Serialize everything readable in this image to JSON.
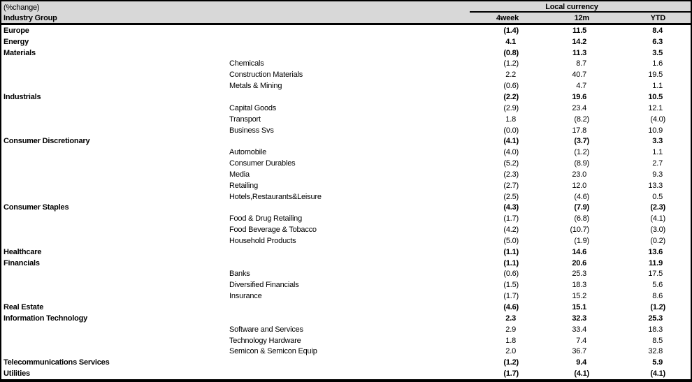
{
  "colors": {
    "header_bg": "#d8d8d8",
    "border": "#000000",
    "text": "#000000"
  },
  "table": {
    "corner_label": "(%change)",
    "row_header_label": "Industry Group",
    "group_header": "Local currency",
    "columns": [
      "4week",
      "12m",
      "YTD"
    ],
    "rows": [
      {
        "label": "Europe",
        "level": "group",
        "bold": true,
        "values": [
          "(1.4)",
          "11.5",
          "8.4"
        ]
      },
      {
        "label": "Energy",
        "level": "group",
        "bold": true,
        "values": [
          "4.1",
          "14.2",
          "6.3"
        ]
      },
      {
        "label": "Materials",
        "level": "group",
        "bold": true,
        "values": [
          "(0.8)",
          "11.3",
          "3.5"
        ]
      },
      {
        "label": "Chemicals",
        "level": "sub",
        "bold": false,
        "values": [
          "(1.2)",
          "8.7",
          "1.6"
        ]
      },
      {
        "label": "Construction Materials",
        "level": "sub",
        "bold": false,
        "values": [
          "2.2",
          "40.7",
          "19.5"
        ]
      },
      {
        "label": "Metals & Mining",
        "level": "sub",
        "bold": false,
        "values": [
          "(0.6)",
          "4.7",
          "1.1"
        ]
      },
      {
        "label": "Industrials",
        "level": "group",
        "bold": true,
        "values": [
          "(2.2)",
          "19.6",
          "10.5"
        ]
      },
      {
        "label": "Capital Goods",
        "level": "sub",
        "bold": false,
        "values": [
          "(2.9)",
          "23.4",
          "12.1"
        ]
      },
      {
        "label": "Transport",
        "level": "sub",
        "bold": false,
        "values": [
          "1.8",
          "(8.2)",
          "(4.0)"
        ]
      },
      {
        "label": "Business Svs",
        "level": "sub",
        "bold": false,
        "values": [
          "(0.0)",
          "17.8",
          "10.9"
        ]
      },
      {
        "label": "Consumer Discretionary",
        "level": "group",
        "bold": true,
        "values": [
          "(4.1)",
          "(3.7)",
          "3.3"
        ]
      },
      {
        "label": "Automobile",
        "level": "sub",
        "bold": false,
        "values": [
          "(4.0)",
          "(1.2)",
          "1.1"
        ]
      },
      {
        "label": "Consumer Durables",
        "level": "sub",
        "bold": false,
        "values": [
          "(5.2)",
          "(8.9)",
          "2.7"
        ]
      },
      {
        "label": "Media",
        "level": "sub",
        "bold": false,
        "values": [
          "(2.3)",
          "23.0",
          "9.3"
        ]
      },
      {
        "label": "Retailing",
        "level": "sub",
        "bold": false,
        "values": [
          "(2.7)",
          "12.0",
          "13.3"
        ]
      },
      {
        "label": "Hotels,Restaurants&Leisure",
        "level": "sub",
        "bold": false,
        "values": [
          "(2.5)",
          "(4.6)",
          "0.5"
        ]
      },
      {
        "label": "Consumer Staples",
        "level": "group",
        "bold": true,
        "values": [
          "(4.3)",
          "(7.9)",
          "(2.3)"
        ]
      },
      {
        "label": "Food & Drug Retailing",
        "level": "sub",
        "bold": false,
        "values": [
          "(1.7)",
          "(6.8)",
          "(4.1)"
        ]
      },
      {
        "label": "Food Beverage & Tobacco",
        "level": "sub",
        "bold": false,
        "values": [
          "(4.2)",
          "(10.7)",
          "(3.0)"
        ]
      },
      {
        "label": "Household Products",
        "level": "sub",
        "bold": false,
        "values": [
          "(5.0)",
          "(1.9)",
          "(0.2)"
        ]
      },
      {
        "label": "Healthcare",
        "level": "group",
        "bold": true,
        "values": [
          "(1.1)",
          "14.6",
          "13.6"
        ]
      },
      {
        "label": "Financials",
        "level": "group",
        "bold": true,
        "values": [
          "(1.1)",
          "20.6",
          "11.9"
        ]
      },
      {
        "label": "Banks",
        "level": "sub",
        "bold": false,
        "values": [
          "(0.6)",
          "25.3",
          "17.5"
        ]
      },
      {
        "label": "Diversified Financials",
        "level": "sub",
        "bold": false,
        "values": [
          "(1.5)",
          "18.3",
          "5.6"
        ]
      },
      {
        "label": "Insurance",
        "level": "sub",
        "bold": false,
        "values": [
          "(1.7)",
          "15.2",
          "8.6"
        ]
      },
      {
        "label": "Real Estate",
        "level": "group",
        "bold": true,
        "values": [
          "(4.6)",
          "15.1",
          "(1.2)"
        ]
      },
      {
        "label": "Information Technology",
        "level": "group",
        "bold": true,
        "values": [
          "2.3",
          "32.3",
          "25.3"
        ]
      },
      {
        "label": "Software and Services",
        "level": "sub",
        "bold": false,
        "values": [
          "2.9",
          "33.4",
          "18.3"
        ]
      },
      {
        "label": "Technology Hardware",
        "level": "sub",
        "bold": false,
        "values": [
          "1.8",
          "7.4",
          "8.5"
        ]
      },
      {
        "label": "Semicon & Semicon Equip",
        "level": "sub",
        "bold": false,
        "values": [
          "2.0",
          "36.7",
          "32.8"
        ]
      },
      {
        "label": "Telecommunications Services",
        "level": "group",
        "bold": true,
        "values": [
          "(1.2)",
          "9.4",
          "5.9"
        ]
      },
      {
        "label": "Utilities",
        "level": "group",
        "bold": true,
        "values": [
          "(1.7)",
          "(4.1)",
          "(4.1)"
        ]
      }
    ]
  },
  "chart_data": {
    "type": "table",
    "title": "(%change) Industry Group performance, Local currency",
    "columns": [
      "4week",
      "12m",
      "YTD"
    ],
    "rows": [
      {
        "label": "Europe",
        "level": "group",
        "4week": -1.4,
        "12m": 11.5,
        "YTD": 8.4
      },
      {
        "label": "Energy",
        "level": "group",
        "4week": 4.1,
        "12m": 14.2,
        "YTD": 6.3
      },
      {
        "label": "Materials",
        "level": "group",
        "4week": -0.8,
        "12m": 11.3,
        "YTD": 3.5
      },
      {
        "label": "Chemicals",
        "level": "sub",
        "4week": -1.2,
        "12m": 8.7,
        "YTD": 1.6
      },
      {
        "label": "Construction Materials",
        "level": "sub",
        "4week": 2.2,
        "12m": 40.7,
        "YTD": 19.5
      },
      {
        "label": "Metals & Mining",
        "level": "sub",
        "4week": -0.6,
        "12m": 4.7,
        "YTD": 1.1
      },
      {
        "label": "Industrials",
        "level": "group",
        "4week": -2.2,
        "12m": 19.6,
        "YTD": 10.5
      },
      {
        "label": "Capital Goods",
        "level": "sub",
        "4week": -2.9,
        "12m": 23.4,
        "YTD": 12.1
      },
      {
        "label": "Transport",
        "level": "sub",
        "4week": 1.8,
        "12m": -8.2,
        "YTD": -4.0
      },
      {
        "label": "Business Svs",
        "level": "sub",
        "4week": -0.0,
        "12m": 17.8,
        "YTD": 10.9
      },
      {
        "label": "Consumer Discretionary",
        "level": "group",
        "4week": -4.1,
        "12m": -3.7,
        "YTD": 3.3
      },
      {
        "label": "Automobile",
        "level": "sub",
        "4week": -4.0,
        "12m": -1.2,
        "YTD": 1.1
      },
      {
        "label": "Consumer Durables",
        "level": "sub",
        "4week": -5.2,
        "12m": -8.9,
        "YTD": 2.7
      },
      {
        "label": "Media",
        "level": "sub",
        "4week": -2.3,
        "12m": 23.0,
        "YTD": 9.3
      },
      {
        "label": "Retailing",
        "level": "sub",
        "4week": -2.7,
        "12m": 12.0,
        "YTD": 13.3
      },
      {
        "label": "Hotels,Restaurants&Leisure",
        "level": "sub",
        "4week": -2.5,
        "12m": -4.6,
        "YTD": 0.5
      },
      {
        "label": "Consumer Staples",
        "level": "group",
        "4week": -4.3,
        "12m": -7.9,
        "YTD": -2.3
      },
      {
        "label": "Food & Drug Retailing",
        "level": "sub",
        "4week": -1.7,
        "12m": -6.8,
        "YTD": -4.1
      },
      {
        "label": "Food Beverage & Tobacco",
        "level": "sub",
        "4week": -4.2,
        "12m": -10.7,
        "YTD": -3.0
      },
      {
        "label": "Household Products",
        "level": "sub",
        "4week": -5.0,
        "12m": -1.9,
        "YTD": -0.2
      },
      {
        "label": "Healthcare",
        "level": "group",
        "4week": -1.1,
        "12m": 14.6,
        "YTD": 13.6
      },
      {
        "label": "Financials",
        "level": "group",
        "4week": -1.1,
        "12m": 20.6,
        "YTD": 11.9
      },
      {
        "label": "Banks",
        "level": "sub",
        "4week": -0.6,
        "12m": 25.3,
        "YTD": 17.5
      },
      {
        "label": "Diversified Financials",
        "level": "sub",
        "4week": -1.5,
        "12m": 18.3,
        "YTD": 5.6
      },
      {
        "label": "Insurance",
        "level": "sub",
        "4week": -1.7,
        "12m": 15.2,
        "YTD": 8.6
      },
      {
        "label": "Real Estate",
        "level": "group",
        "4week": -4.6,
        "12m": 15.1,
        "YTD": -1.2
      },
      {
        "label": "Information Technology",
        "level": "group",
        "4week": 2.3,
        "12m": 32.3,
        "YTD": 25.3
      },
      {
        "label": "Software and Services",
        "level": "sub",
        "4week": 2.9,
        "12m": 33.4,
        "YTD": 18.3
      },
      {
        "label": "Technology Hardware",
        "level": "sub",
        "4week": 1.8,
        "12m": 7.4,
        "YTD": 8.5
      },
      {
        "label": "Semicon & Semicon Equip",
        "level": "sub",
        "4week": 2.0,
        "12m": 36.7,
        "YTD": 32.8
      },
      {
        "label": "Telecommunications Services",
        "level": "group",
        "4week": -1.2,
        "12m": 9.4,
        "YTD": 5.9
      },
      {
        "label": "Utilities",
        "level": "group",
        "4week": -1.7,
        "12m": -4.1,
        "YTD": -4.1
      }
    ]
  }
}
